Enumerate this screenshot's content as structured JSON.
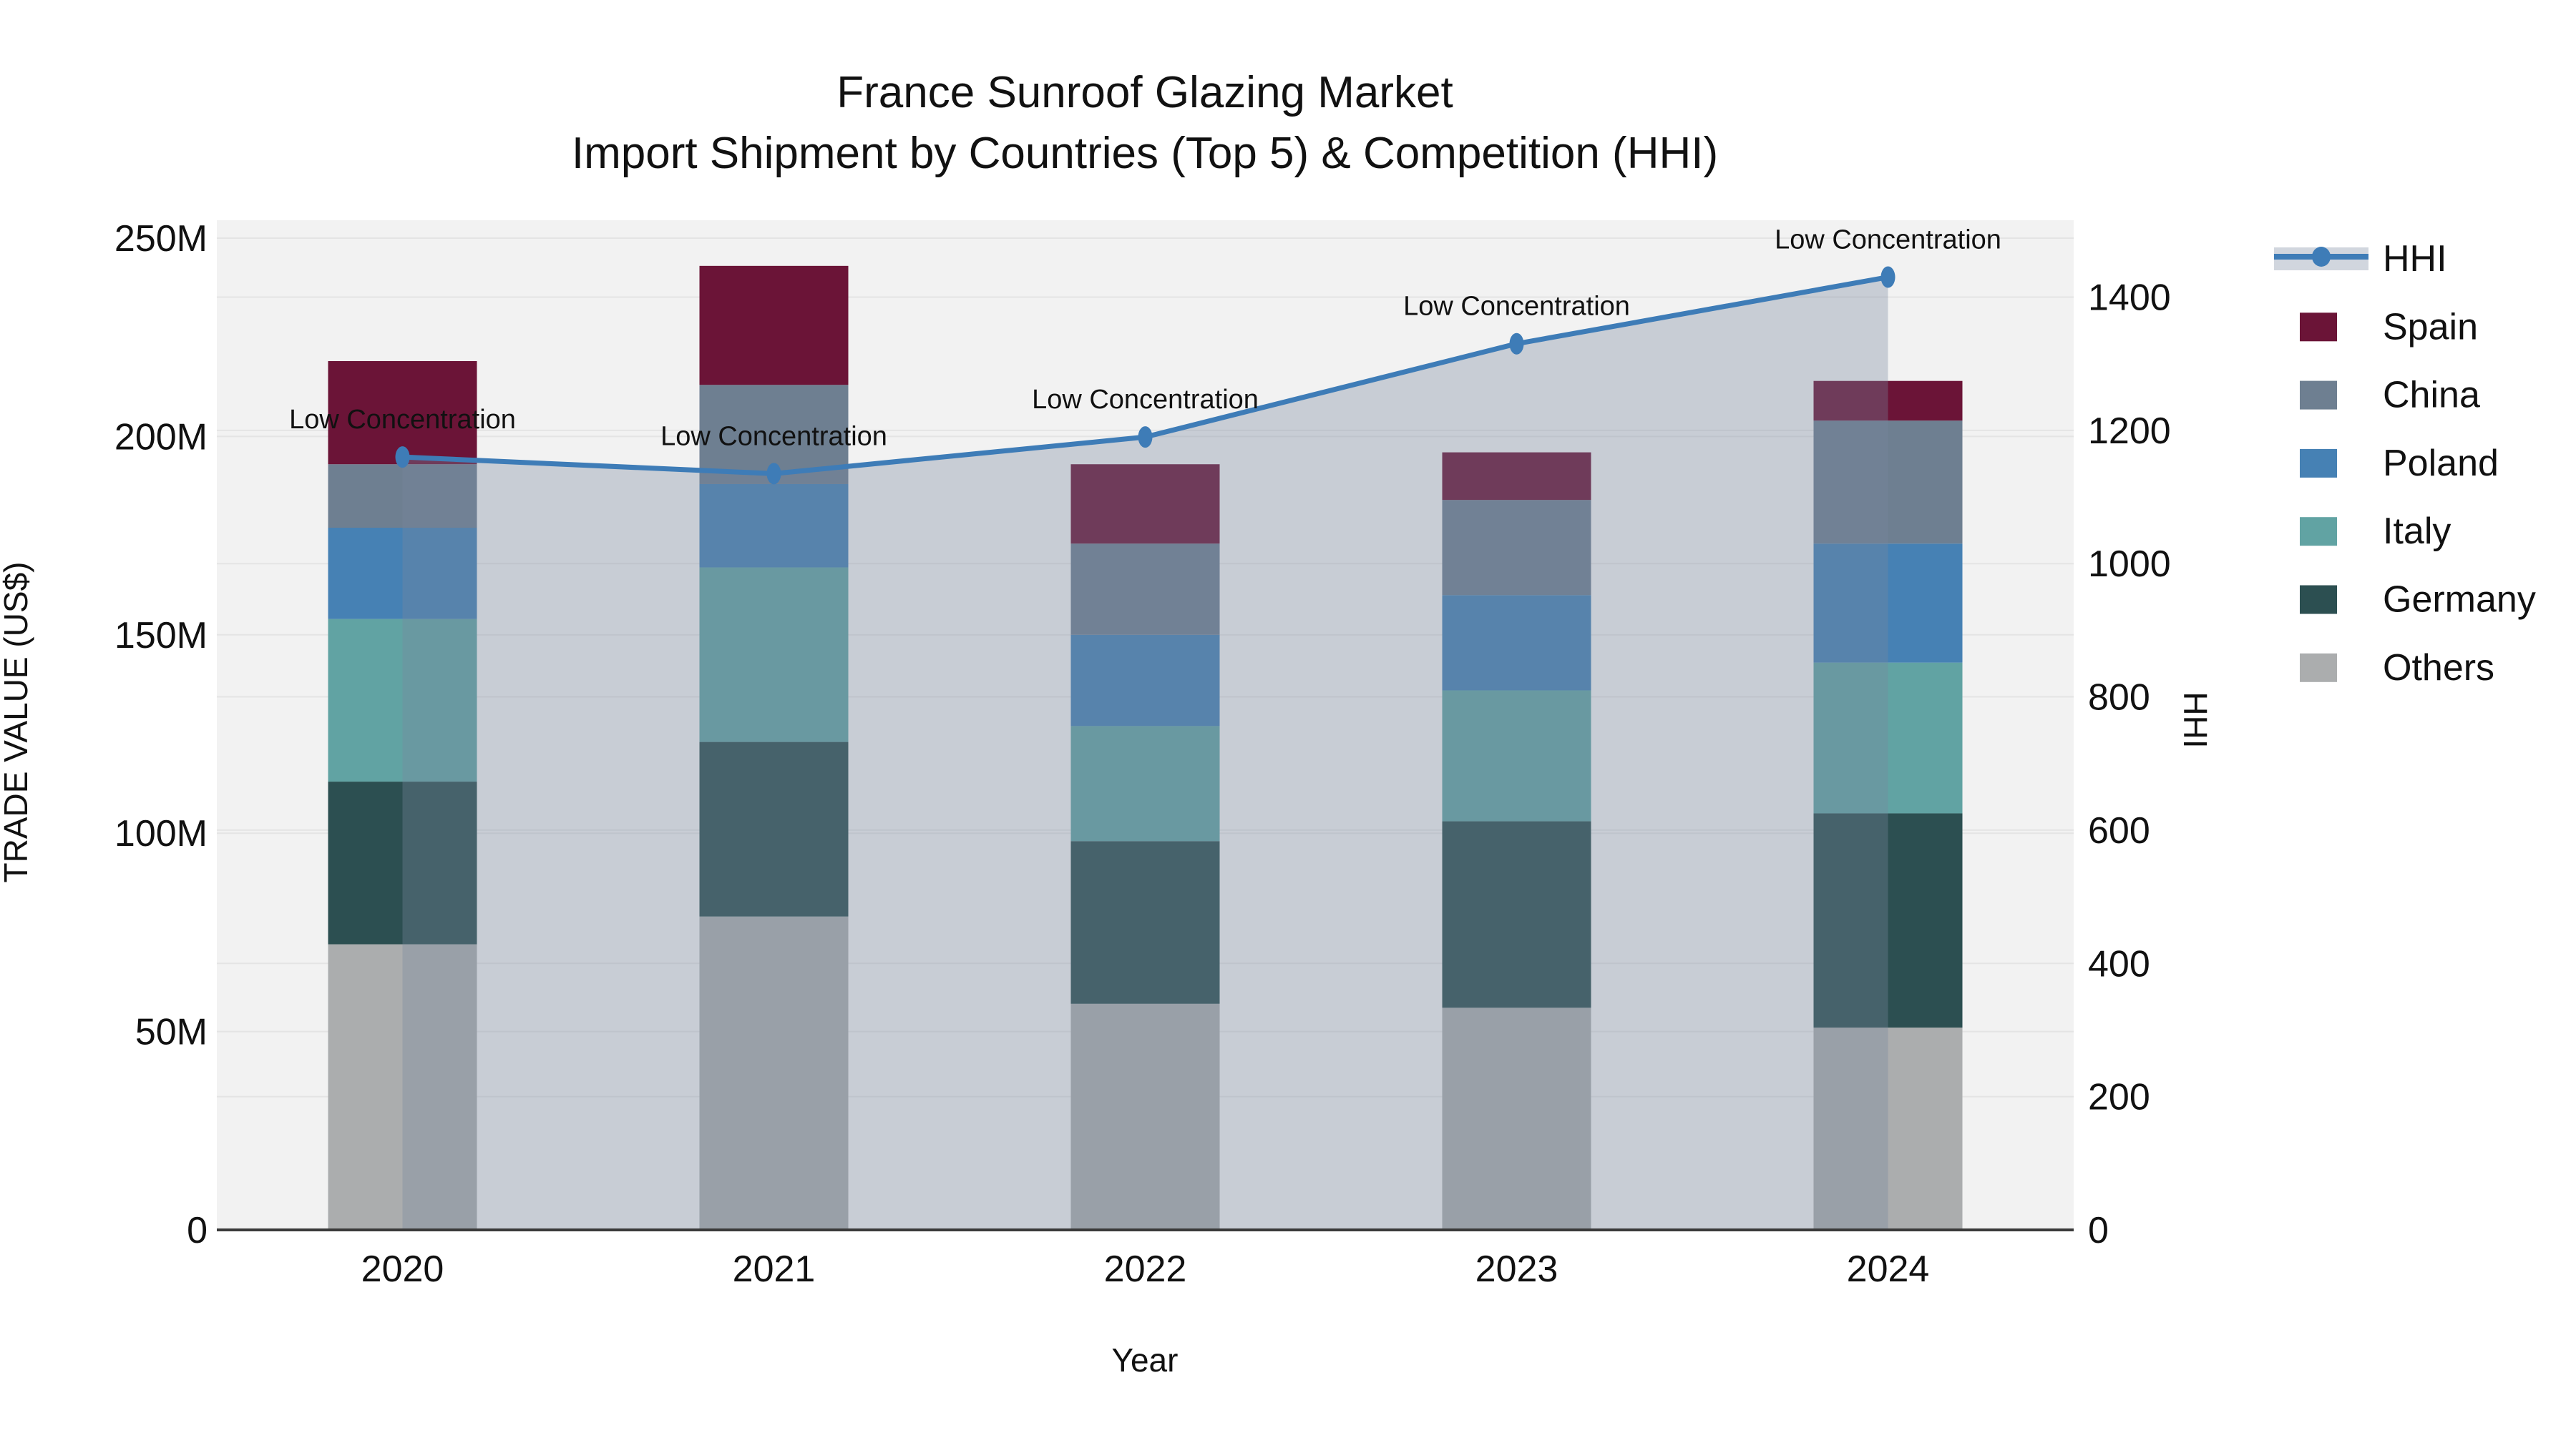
{
  "title": {
    "line1": "France Sunroof Glazing Market",
    "line2": "Import Shipment by Countries (Top 5) & Competition (HHI)"
  },
  "axis": {
    "y_left": {
      "title": "TRADE VALUE (US$)",
      "ticks": [
        {
          "value": 0,
          "label": "0"
        },
        {
          "value": 50,
          "label": "50M"
        },
        {
          "value": 100,
          "label": "100M"
        },
        {
          "value": 150,
          "label": "150M"
        },
        {
          "value": 200,
          "label": "200M"
        },
        {
          "value": 250,
          "label": "250M"
        }
      ]
    },
    "y_right": {
      "title": "HHI",
      "ticks": [
        {
          "value": 0,
          "label": "0"
        },
        {
          "value": 200,
          "label": "200"
        },
        {
          "value": 400,
          "label": "400"
        },
        {
          "value": 600,
          "label": "600"
        },
        {
          "value": 800,
          "label": "800"
        },
        {
          "value": 1000,
          "label": "1000"
        },
        {
          "value": 1200,
          "label": "1200"
        },
        {
          "value": 1400,
          "label": "1400"
        }
      ]
    },
    "x": {
      "title": "Year",
      "categories": [
        "2020",
        "2021",
        "2022",
        "2023",
        "2024"
      ]
    }
  },
  "chart_data": {
    "type": "stacked-bar + line (dual axis)",
    "categories": [
      "2020",
      "2021",
      "2022",
      "2023",
      "2024"
    ],
    "stack_order_bottom_to_top": [
      "Others",
      "Germany",
      "Italy",
      "Poland",
      "China",
      "Spain"
    ],
    "series": [
      {
        "name": "Others",
        "color": "#ABADAE",
        "values": [
          72,
          79,
          57,
          56,
          51
        ]
      },
      {
        "name": "Germany",
        "color": "#2C4F51",
        "values": [
          41,
          44,
          41,
          47,
          54
        ]
      },
      {
        "name": "Italy",
        "color": "#61A3A3",
        "values": [
          41,
          44,
          29,
          33,
          38
        ]
      },
      {
        "name": "Poland",
        "color": "#4681B4",
        "values": [
          23,
          21,
          23,
          24,
          30
        ]
      },
      {
        "name": "China",
        "color": "#6E7F91",
        "values": [
          16,
          25,
          23,
          24,
          31
        ]
      },
      {
        "name": "Spain",
        "color": "#6B1437",
        "values": [
          26,
          30,
          20,
          12,
          10
        ]
      }
    ],
    "bar_totals": [
      219,
      243,
      193,
      196,
      214
    ],
    "line_series": {
      "name": "HHI",
      "axis": "right",
      "color": "#3E7CB7",
      "area_fill": "rgba(120,136,158,0.34)",
      "values": [
        1160,
        1135,
        1190,
        1330,
        1430
      ]
    },
    "point_annotations": [
      {
        "x": "2020",
        "label": "Low Concentration"
      },
      {
        "x": "2021",
        "label": "Low Concentration"
      },
      {
        "x": "2022",
        "label": "Low Concentration"
      },
      {
        "x": "2023",
        "label": "Low Concentration"
      },
      {
        "x": "2024",
        "label": "Low Concentration"
      }
    ],
    "ylim_left": [
      0,
      256
    ],
    "ylim_right": [
      0,
      1529
    ],
    "grid": true,
    "legend_position": "right"
  },
  "legend": {
    "items": [
      {
        "label": "HHI",
        "type": "line"
      },
      {
        "label": "Spain",
        "type": "swatch",
        "color": "#6B1437"
      },
      {
        "label": "China",
        "type": "swatch",
        "color": "#6E7F91"
      },
      {
        "label": "Poland",
        "type": "swatch",
        "color": "#4681B4"
      },
      {
        "label": "Italy",
        "type": "swatch",
        "color": "#61A3A3"
      },
      {
        "label": "Germany",
        "type": "swatch",
        "color": "#2C4F51"
      },
      {
        "label": "Others",
        "type": "swatch",
        "color": "#ABADAE"
      }
    ]
  },
  "colors": {
    "page_bg": "#FFFFFF",
    "plot_bg": "#F2F2F2",
    "gridline": "#E4E4E4",
    "axis_line": "#3A3A3A",
    "text": "#111111",
    "hhi_line": "#3E7CB7",
    "area_fill": "rgba(120,136,158,0.34)"
  }
}
